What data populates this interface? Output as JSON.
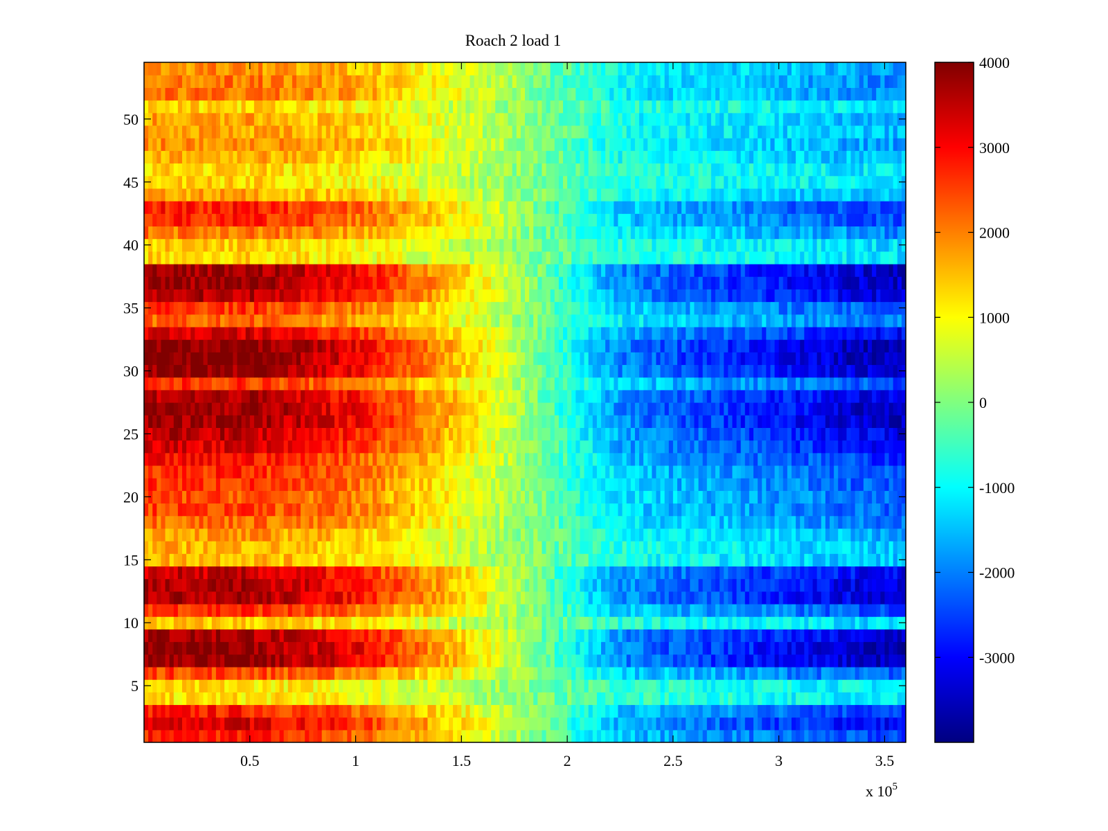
{
  "chart_data": {
    "type": "heatmap",
    "title": "Roach 2 load 1",
    "xlabel": "",
    "ylabel": "",
    "xlim": [
      0,
      360000
    ],
    "ylim": [
      0.5,
      54.5
    ],
    "x_ticks": [
      {
        "value": 50000,
        "label": "0.5"
      },
      {
        "value": 100000,
        "label": "1"
      },
      {
        "value": 150000,
        "label": "1.5"
      },
      {
        "value": 200000,
        "label": "2"
      },
      {
        "value": 250000,
        "label": "2.5"
      },
      {
        "value": 300000,
        "label": "3"
      },
      {
        "value": 350000,
        "label": "3.5"
      }
    ],
    "x_multiplier": {
      "prefix": "x 10",
      "exponent": "5"
    },
    "y_ticks": [
      {
        "value": 5,
        "label": "5"
      },
      {
        "value": 10,
        "label": "10"
      },
      {
        "value": 15,
        "label": "15"
      },
      {
        "value": 20,
        "label": "20"
      },
      {
        "value": 25,
        "label": "25"
      },
      {
        "value": 30,
        "label": "30"
      },
      {
        "value": 35,
        "label": "35"
      },
      {
        "value": 40,
        "label": "40"
      },
      {
        "value": 45,
        "label": "45"
      },
      {
        "value": 50,
        "label": "50"
      }
    ],
    "colorbar": {
      "colormap": "jet",
      "clim": [
        -4000,
        4000
      ],
      "ticks": [
        {
          "value": 4000,
          "label": "4000"
        },
        {
          "value": 3000,
          "label": "3000"
        },
        {
          "value": 2000,
          "label": "2000"
        },
        {
          "value": 1000,
          "label": "1000"
        },
        {
          "value": 0,
          "label": "0"
        },
        {
          "value": -1000,
          "label": "-1000"
        },
        {
          "value": -2000,
          "label": "-2000"
        },
        {
          "value": -3000,
          "label": "-3000"
        }
      ]
    },
    "rows": 54,
    "x_profile": [
      {
        "x": 0,
        "v": 1.0
      },
      {
        "x": 50000,
        "v": 1.0
      },
      {
        "x": 100000,
        "v": 0.8
      },
      {
        "x": 150000,
        "v": 0.38
      },
      {
        "x": 175000,
        "v": 0.12
      },
      {
        "x": 200000,
        "v": -0.2
      },
      {
        "x": 225000,
        "v": -0.5
      },
      {
        "x": 250000,
        "v": -0.6
      },
      {
        "x": 300000,
        "v": -0.75
      },
      {
        "x": 340000,
        "v": -0.88
      },
      {
        "x": 360000,
        "v": -0.92
      }
    ],
    "row_amplitude": [
      2800,
      3300,
      2800,
      1200,
      1200,
      2500,
      3900,
      3900,
      3700,
      1400,
      2700,
      3700,
      3700,
      3400,
      1600,
      1600,
      1800,
      2200,
      2500,
      2400,
      2600,
      2700,
      2900,
      3300,
      3500,
      3800,
      3800,
      3600,
      2600,
      3800,
      4000,
      4000,
      3300,
      2200,
      2600,
      3600,
      3800,
      3800,
      1300,
      1400,
      2100,
      2700,
      2800,
      1700,
      1300,
      1300,
      1700,
      1900,
      1700,
      1700,
      1300,
      2100,
      2100,
      1900
    ],
    "colors": {
      "background": "#ffffff",
      "axis": "#000000"
    }
  }
}
